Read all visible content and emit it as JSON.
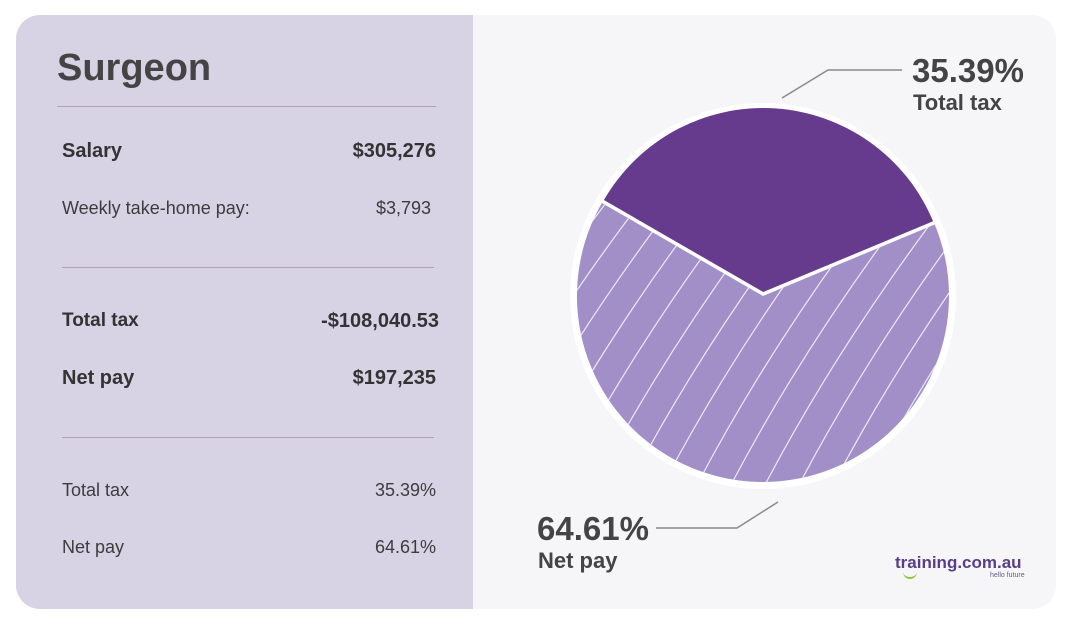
{
  "card": {
    "title": "Surgeon",
    "salary": {
      "label": "Salary",
      "value": "$305,276"
    },
    "weekly": {
      "label": "Weekly take-home pay:",
      "value": "$3,793"
    },
    "total_tax": {
      "label": "Total tax",
      "value": "-$108,040.53"
    },
    "net_pay": {
      "label": "Net pay",
      "value": "$197,235"
    },
    "tax_pct": {
      "label": "Total tax",
      "value": "35.39%"
    },
    "net_pct": {
      "label": "Net pay",
      "value": "64.61%"
    }
  },
  "brand": {
    "name": "training.com.au",
    "tagline": "hello future"
  },
  "colors": {
    "tax": "#663a8c",
    "net": "#a28fc8",
    "left_panel": "#d8d2e5"
  },
  "chart_data": {
    "type": "pie",
    "slices": [
      {
        "label": "Total tax",
        "value": 35.39,
        "display": "35.39%"
      },
      {
        "label": "Net pay",
        "value": 64.61,
        "display": "64.61%"
      }
    ]
  }
}
